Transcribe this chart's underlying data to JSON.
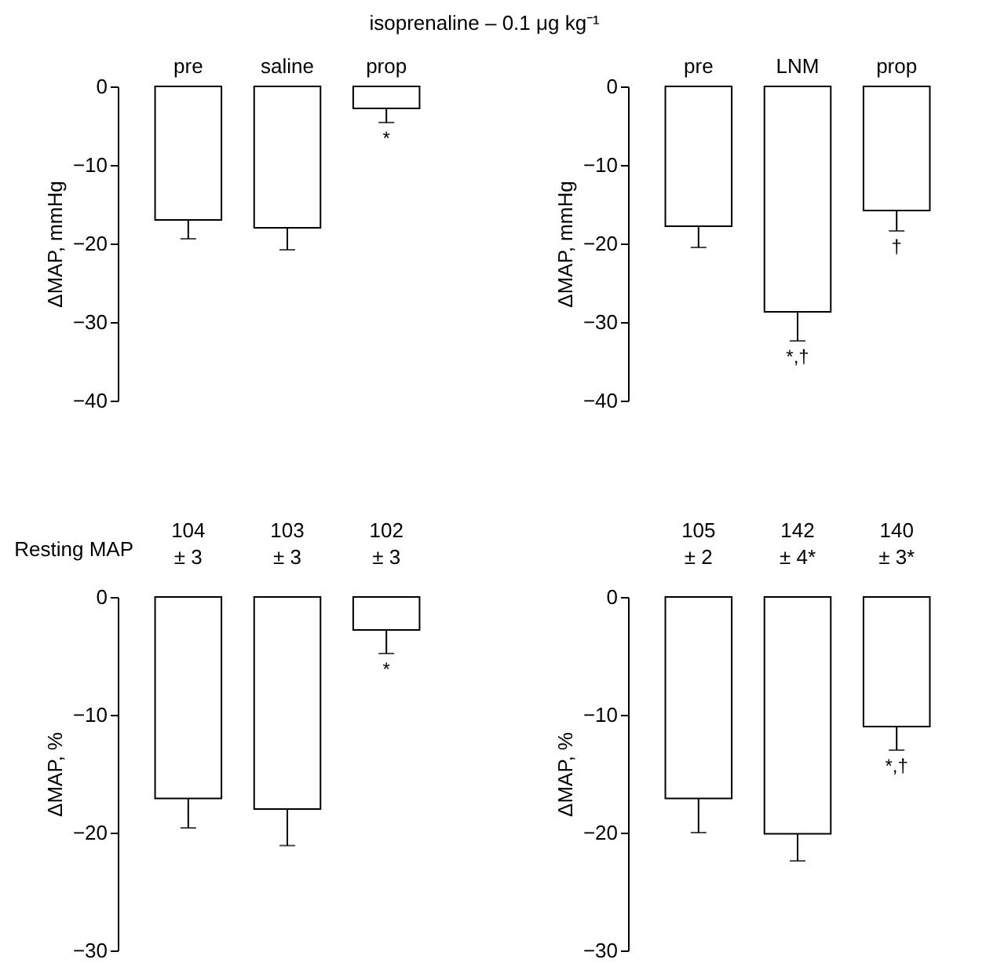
{
  "chart_data": [
    {
      "type": "bar",
      "title": "isoprenaline – 0.1 μg kg⁻¹",
      "categories": [
        "pre",
        "saline",
        "prop"
      ],
      "values": [
        -17,
        -18,
        -2.8
      ],
      "errors": [
        2.4,
        2.8,
        1.8
      ],
      "color": "#ffffff",
      "ylabel": "ΔMAP, mmHg",
      "ylim": [
        -40,
        0
      ],
      "yticks": [
        0,
        -10,
        -20,
        -30,
        -40
      ],
      "annotations": [
        {
          "text": "*",
          "x": "prop",
          "y": -4.6
        }
      ]
    },
    {
      "type": "bar",
      "categories": [
        "pre",
        "LNM",
        "prop"
      ],
      "values": [
        -17.8,
        -28.7,
        -15.8
      ],
      "errors": [
        2.7,
        3.7,
        2.6
      ],
      "color": "#ffffff",
      "ylabel": "ΔMAP, mmHg",
      "ylim": [
        -40,
        0
      ],
      "yticks": [
        0,
        -10,
        -20,
        -30,
        -40
      ],
      "annotations": [
        {
          "text": "*,†",
          "x": "LNM",
          "y": -32.4
        },
        {
          "text": "†",
          "x": "prop",
          "y": -18.4
        }
      ]
    },
    {
      "type": "bar",
      "categories": [
        null,
        null,
        null
      ],
      "values": [
        -17.1,
        -18,
        -2.8
      ],
      "errors": [
        2.5,
        3.1,
        2
      ],
      "color": "#ffffff",
      "ylabel": "ΔMAP, %",
      "ylim": [
        -30,
        0
      ],
      "yticks": [
        0,
        -10,
        -20,
        -30
      ],
      "tick_labels": "y",
      "annotations": [
        "Resting MAP",
        "104\n± 3",
        "103\n± 3",
        "102\n± 3",
        {
          "text": "*",
          "y": -4.8
        }
      ]
    },
    {
      "type": "bar",
      "categories": [
        null,
        null,
        null
      ],
      "values": [
        -17.1,
        -20.1,
        -11
      ],
      "errors": [
        2.9,
        2.3,
        2
      ],
      "color": "#ffffff",
      "ylabel": "ΔMAP, %",
      "ylim": [
        -30,
        0
      ],
      "yticks": [
        0,
        -10,
        -20,
        -30
      ],
      "tick_labels": "y",
      "annotations": [
        "105\n± 2",
        "142\n± 4*",
        "140\n± 3*",
        {
          "text": "*,†",
          "y": -13
        }
      ]
    }
  ]
}
